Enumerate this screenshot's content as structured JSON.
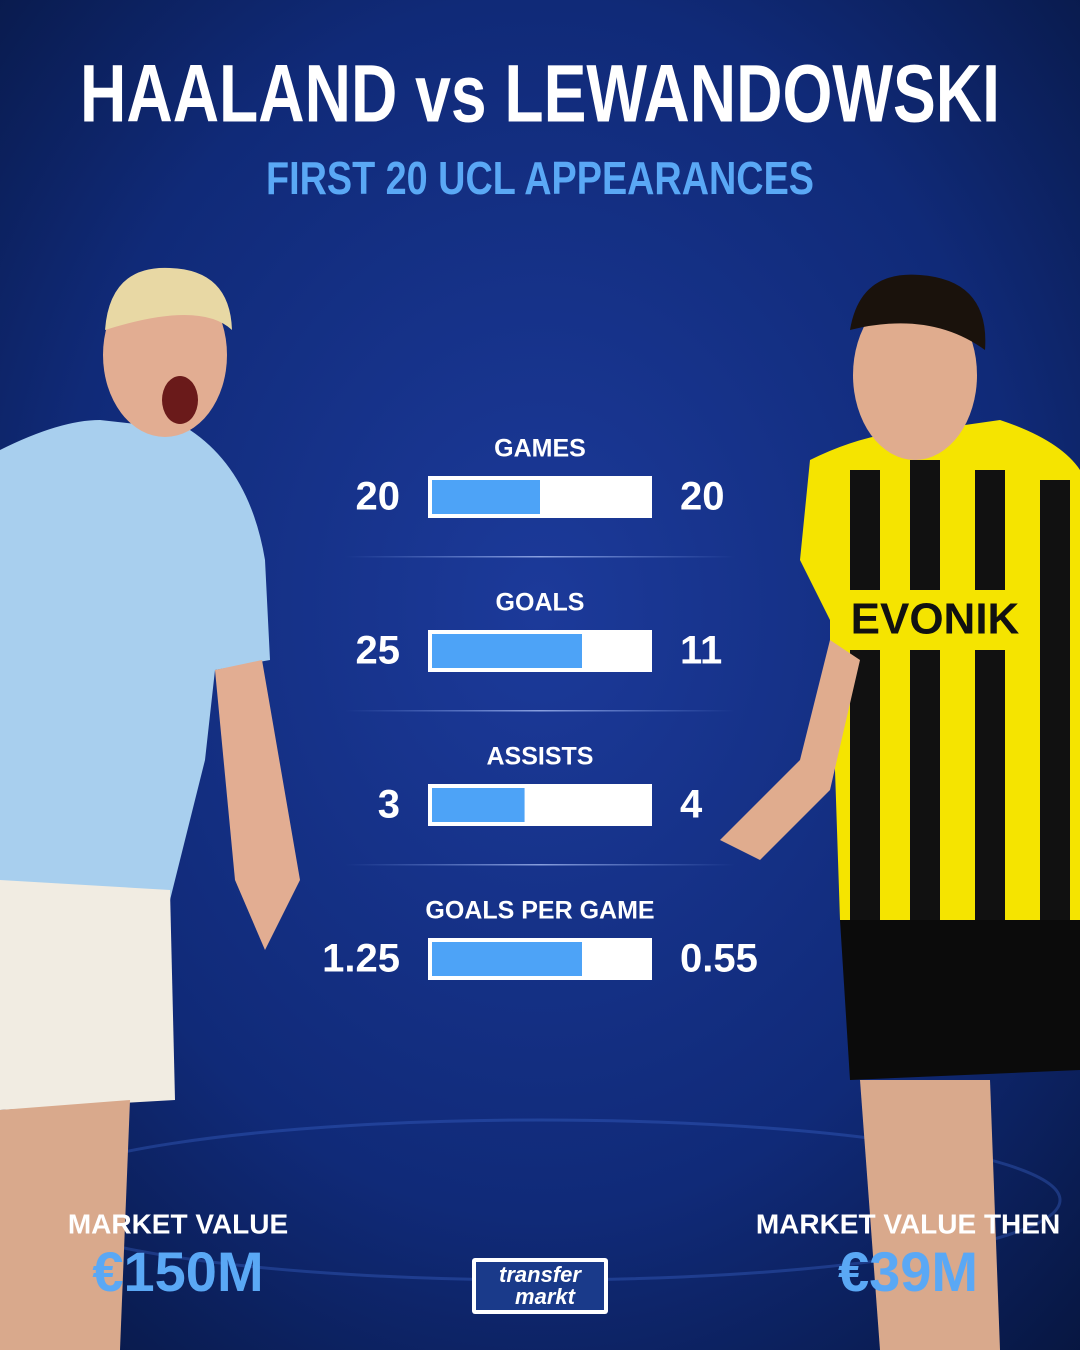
{
  "title": "HAALAND vs LEWANDOWSKI",
  "subtitle": "FIRST 20 UCL APPEARANCES",
  "stats": [
    {
      "label": "GAMES",
      "left": 20,
      "right": 20
    },
    {
      "label": "GOALS",
      "left": 25,
      "right": 11
    },
    {
      "label": "ASSISTS",
      "left": 3,
      "right": 4
    },
    {
      "label": "GOALS PER GAME",
      "left": 1.25,
      "right": 0.55
    }
  ],
  "left_player": {
    "caption": "MARKET VALUE",
    "value": "€150M"
  },
  "right_player": {
    "caption": "MARKET VALUE THEN",
    "value": "€39M"
  },
  "logo": {
    "line1": "transfer",
    "line2": "markt"
  }
}
